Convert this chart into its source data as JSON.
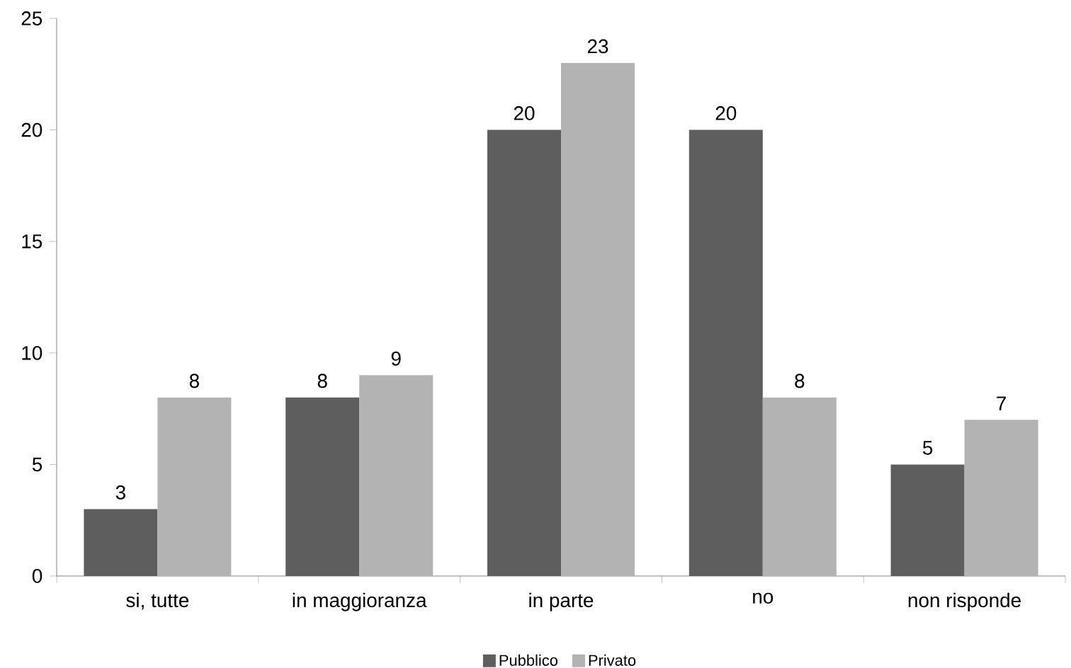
{
  "chart_data": {
    "type": "bar",
    "categories": [
      "si, tutte",
      "in maggioranza",
      "in parte",
      "no",
      "non risponde"
    ],
    "series": [
      {
        "name": "Pubblico",
        "color": "#5e5e5e",
        "values": [
          3,
          8,
          20,
          20,
          5
        ]
      },
      {
        "name": "Privato",
        "color": "#b3b3b3",
        "values": [
          8,
          9,
          23,
          8,
          7
        ]
      }
    ],
    "ylim": [
      0,
      25
    ],
    "yticks": [
      0,
      5,
      10,
      15,
      20,
      25
    ],
    "data_labels": true,
    "grid": false,
    "legend": "bottom"
  }
}
